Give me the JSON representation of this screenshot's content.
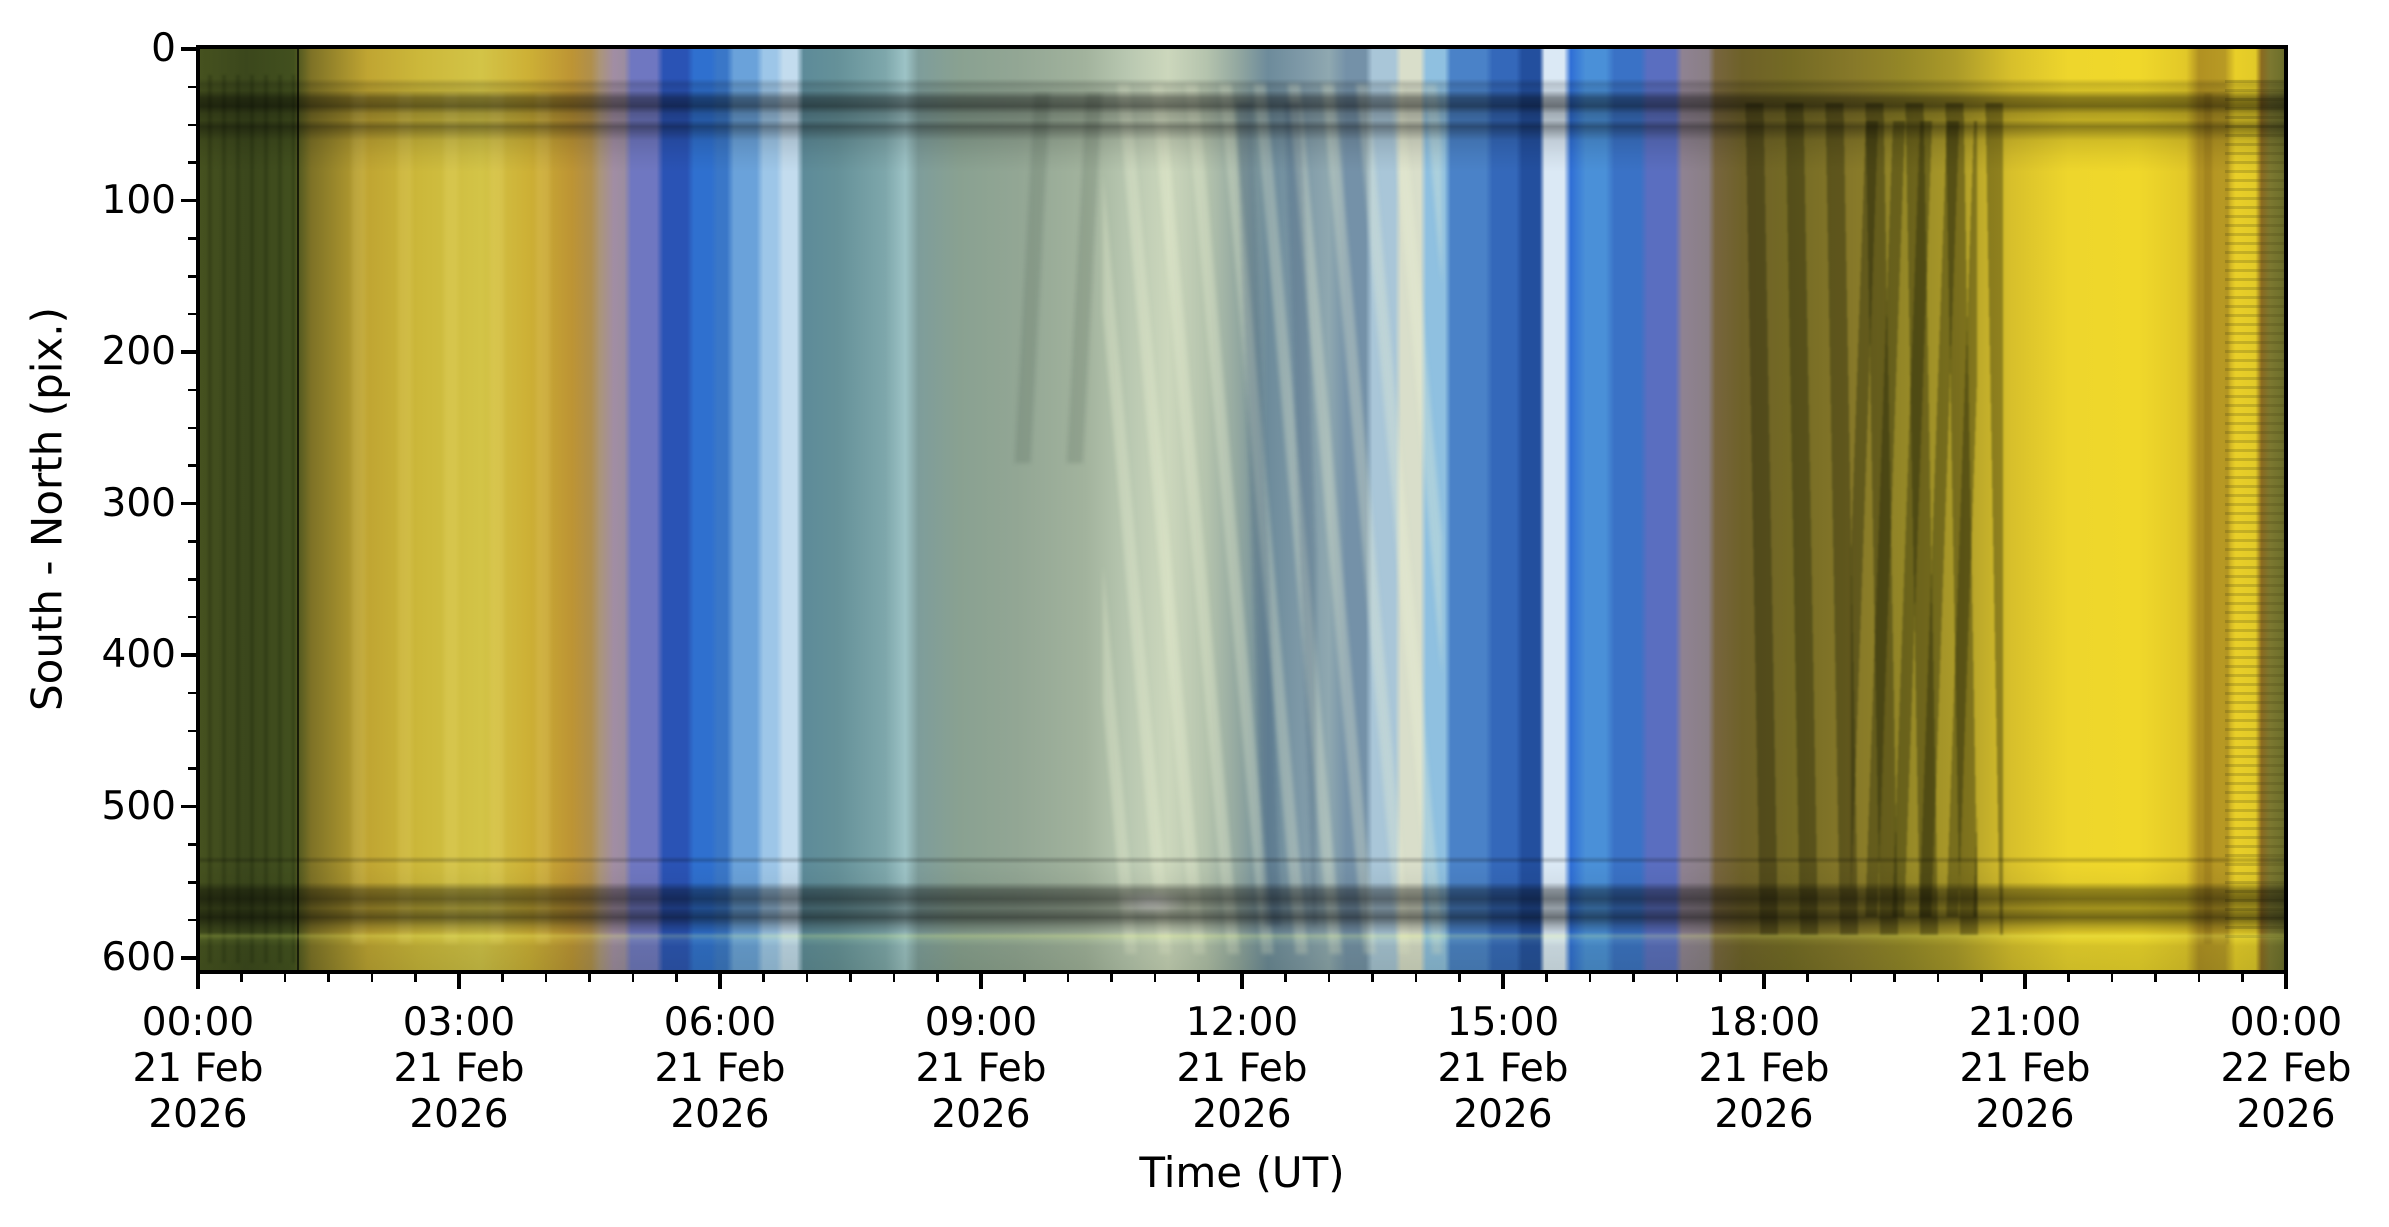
{
  "figure": {
    "background": "#ffffff",
    "text_color": "#000000"
  },
  "chart_data": {
    "type": "heatmap",
    "subtype": "keogram-image",
    "title": "",
    "xlabel": "Time (UT)",
    "ylabel": "South - North (pix.)",
    "x_axis": {
      "start": "00:00 21 Feb 2026",
      "end": "00:00 22 Feb 2026",
      "span_hours": 24,
      "major_tick_interval_hours": 3,
      "minor_tick_interval_hours": 0.5,
      "tick_labels": [
        [
          "00:00",
          "21 Feb",
          "2026"
        ],
        [
          "03:00",
          "21 Feb",
          "2026"
        ],
        [
          "06:00",
          "21 Feb",
          "2026"
        ],
        [
          "09:00",
          "21 Feb",
          "2026"
        ],
        [
          "12:00",
          "21 Feb",
          "2026"
        ],
        [
          "15:00",
          "21 Feb",
          "2026"
        ],
        [
          "18:00",
          "21 Feb",
          "2026"
        ],
        [
          "21:00",
          "21 Feb",
          "2026"
        ],
        [
          "00:00",
          "22 Feb",
          "2026"
        ]
      ]
    },
    "y_axis": {
      "tick_labels": [
        "0",
        "100",
        "200",
        "300",
        "400",
        "500",
        "600"
      ],
      "major_tick_interval": 100,
      "minor_tick_interval": 25,
      "range_pix": [
        0,
        607
      ],
      "direction": "0 at top"
    },
    "keogram_bands": [
      {
        "t": 0.0,
        "c": "#46521f"
      },
      {
        "t": 0.55,
        "c": "#3b471c"
      },
      {
        "t": 1.1,
        "c": "#42501e"
      },
      {
        "t": 1.3,
        "c": "#7e7226"
      },
      {
        "t": 1.95,
        "c": "#c0a532"
      },
      {
        "t": 2.55,
        "c": "#ccb83a"
      },
      {
        "t": 3.25,
        "c": "#d3c447"
      },
      {
        "t": 3.8,
        "c": "#cdb035"
      },
      {
        "t": 4.3,
        "c": "#bd9434"
      },
      {
        "t": 4.52,
        "c": "#b08f4c"
      },
      {
        "t": 4.62,
        "c": "#ab9579"
      },
      {
        "t": 4.78,
        "c": "#a18da4"
      },
      {
        "t": 4.9,
        "c": "#9c8da0"
      },
      {
        "t": 4.98,
        "c": "#6f77c1"
      },
      {
        "t": 5.27,
        "c": "#6f77c1"
      },
      {
        "t": 5.35,
        "c": "#2a53b5"
      },
      {
        "t": 5.62,
        "c": "#2a53b5"
      },
      {
        "t": 5.7,
        "c": "#2f70cf"
      },
      {
        "t": 5.9,
        "c": "#2f70cf"
      },
      {
        "t": 5.97,
        "c": "#3a77c8"
      },
      {
        "t": 6.08,
        "c": "#3a77c8"
      },
      {
        "t": 6.16,
        "c": "#6aa2da"
      },
      {
        "t": 6.42,
        "c": "#6aa2da"
      },
      {
        "t": 6.5,
        "c": "#9dc6e8"
      },
      {
        "t": 6.65,
        "c": "#9dc6e8"
      },
      {
        "t": 6.73,
        "c": "#c3dcee"
      },
      {
        "t": 6.88,
        "c": "#c3dcee"
      },
      {
        "t": 6.96,
        "c": "#5d8b99"
      },
      {
        "t": 7.35,
        "c": "#659199"
      },
      {
        "t": 7.9,
        "c": "#7ea7ab"
      },
      {
        "t": 8.13,
        "c": "#9dc3c6"
      },
      {
        "t": 8.28,
        "c": "#7e9d9b"
      },
      {
        "t": 8.75,
        "c": "#89a191"
      },
      {
        "t": 9.4,
        "c": "#92a694"
      },
      {
        "t": 10.2,
        "c": "#a2b39d"
      },
      {
        "t": 10.7,
        "c": "#b9c8b1"
      },
      {
        "t": 11.15,
        "c": "#ccd7bc"
      },
      {
        "t": 11.6,
        "c": "#b4c3ad"
      },
      {
        "t": 11.95,
        "c": "#93a8a0"
      },
      {
        "t": 12.3,
        "c": "#6d8b9b"
      },
      {
        "t": 12.7,
        "c": "#7f9aa8"
      },
      {
        "t": 13.0,
        "c": "#8fa8b0"
      },
      {
        "t": 13.2,
        "c": "#7491a8"
      },
      {
        "t": 13.42,
        "c": "#7491a8"
      },
      {
        "t": 13.5,
        "c": "#a9c6d8"
      },
      {
        "t": 13.76,
        "c": "#a9c6d8"
      },
      {
        "t": 13.83,
        "c": "#d9deca"
      },
      {
        "t": 14.05,
        "c": "#d9deca"
      },
      {
        "t": 14.12,
        "c": "#8fc0e0"
      },
      {
        "t": 14.33,
        "c": "#8fc0e0"
      },
      {
        "t": 14.4,
        "c": "#4a82c8"
      },
      {
        "t": 14.8,
        "c": "#4a82c8"
      },
      {
        "t": 14.88,
        "c": "#3468ba"
      },
      {
        "t": 15.15,
        "c": "#3468ba"
      },
      {
        "t": 15.22,
        "c": "#234f9e"
      },
      {
        "t": 15.42,
        "c": "#234f9e"
      },
      {
        "t": 15.48,
        "c": "#dbe9f5"
      },
      {
        "t": 15.7,
        "c": "#dbe9f5"
      },
      {
        "t": 15.78,
        "c": "#2f6fd6"
      },
      {
        "t": 15.95,
        "c": "#4a90d8"
      },
      {
        "t": 16.18,
        "c": "#4a90d8"
      },
      {
        "t": 16.28,
        "c": "#3a72c6"
      },
      {
        "t": 16.58,
        "c": "#3a72c6"
      },
      {
        "t": 16.66,
        "c": "#5a6ec0"
      },
      {
        "t": 16.98,
        "c": "#5a6ec0"
      },
      {
        "t": 17.06,
        "c": "#8f8292"
      },
      {
        "t": 17.36,
        "c": "#8a7f86"
      },
      {
        "t": 17.44,
        "c": "#77653e"
      },
      {
        "t": 17.75,
        "c": "#6e6128"
      },
      {
        "t": 18.3,
        "c": "#746a24"
      },
      {
        "t": 19.0,
        "c": "#867829"
      },
      {
        "t": 19.6,
        "c": "#948727"
      },
      {
        "t": 20.2,
        "c": "#ab9a29"
      },
      {
        "t": 20.85,
        "c": "#d8c02b"
      },
      {
        "t": 21.5,
        "c": "#eed62c"
      },
      {
        "t": 22.3,
        "c": "#f0d82a"
      },
      {
        "t": 22.85,
        "c": "#e2c828"
      },
      {
        "t": 23.0,
        "c": "#b19122"
      },
      {
        "t": 23.3,
        "c": "#b89a24"
      },
      {
        "t": 23.42,
        "c": "#e9cf28"
      },
      {
        "t": 23.65,
        "c": "#e2ca28"
      },
      {
        "t": 23.72,
        "c": "#8a6a20"
      },
      {
        "t": 23.82,
        "c": "#7c7830"
      },
      {
        "t": 23.95,
        "c": "#6f702c"
      },
      {
        "t": 24.0,
        "c": "#63652a"
      }
    ],
    "horizontal_rows": [
      {
        "p": 0.0,
        "c": "rgba(0,0,0,0)"
      },
      {
        "p": 0.034,
        "c": "rgba(0,0,0,0)"
      },
      {
        "p": 0.04,
        "c": "rgba(0,0,0,0.17)"
      },
      {
        "p": 0.047,
        "c": "rgba(0,0,0,0.10)"
      },
      {
        "p": 0.055,
        "c": "rgba(0,0,0,0.42)"
      },
      {
        "p": 0.064,
        "c": "rgba(0,0,0,0.52)"
      },
      {
        "p": 0.072,
        "c": "rgba(0,0,0,0.26)"
      },
      {
        "p": 0.079,
        "c": "rgba(0,0,0,0.20)"
      },
      {
        "p": 0.086,
        "c": "rgba(0,0,0,0.42)"
      },
      {
        "p": 0.093,
        "c": "rgba(0,0,0,0.28)"
      },
      {
        "p": 0.101,
        "c": "rgba(0,0,0,0.12)"
      },
      {
        "p": 0.118,
        "c": "rgba(0,0,0,0.05)"
      },
      {
        "p": 0.135,
        "c": "rgba(0,0,0,0)"
      },
      {
        "p": 0.875,
        "c": "rgba(0,0,0,0)"
      },
      {
        "p": 0.879,
        "c": "rgba(0,0,0,0.20)"
      },
      {
        "p": 0.883,
        "c": "rgba(0,0,0,0)"
      },
      {
        "p": 0.903,
        "c": "rgba(0,0,0,0.04)"
      },
      {
        "p": 0.911,
        "c": "rgba(0,0,0,0.38)"
      },
      {
        "p": 0.921,
        "c": "rgba(0,0,0,0.50)"
      },
      {
        "p": 0.931,
        "c": "rgba(0,0,0,0.32)"
      },
      {
        "p": 0.941,
        "c": "rgba(0,0,0,0.52)"
      },
      {
        "p": 0.95,
        "c": "rgba(0,0,0,0.26)"
      },
      {
        "p": 0.957,
        "c": "rgba(0,0,0,0.10)"
      },
      {
        "p": 0.961,
        "c": "rgba(205,225,95,0.22)"
      },
      {
        "p": 0.966,
        "c": "rgba(120,150,60,0.10)"
      },
      {
        "p": 0.972,
        "c": "rgba(30,45,15,0.12)"
      },
      {
        "p": 1.0,
        "c": "rgba(25,40,12,0.16)"
      }
    ],
    "features": [
      {
        "kind": "vline",
        "name": "black-gap-line",
        "t": 1.15,
        "w": 2,
        "c": "rgba(10,12,4,0.8)"
      },
      {
        "kind": "streaks",
        "name": "left-green-striation",
        "t0": 0.0,
        "t1": 1.12,
        "top": 0.03,
        "bottom": 0.99,
        "angle": 90,
        "period": 14,
        "w": 4,
        "c": "rgba(18,28,8,0.22)",
        "blur": 1
      },
      {
        "kind": "streaks",
        "name": "gold-light-striation",
        "t0": 1.4,
        "t1": 4.3,
        "top": 0.05,
        "bottom": 0.97,
        "angle": 90,
        "period": 46,
        "w": 14,
        "c": "rgba(255,242,150,0.14)",
        "blur": 2
      },
      {
        "kind": "streaks",
        "name": "morning-smudge",
        "t0": 9.2,
        "t1": 10.5,
        "top": 0.05,
        "bottom": 0.45,
        "angle": 93,
        "period": 52,
        "w": 16,
        "c": "rgba(55,75,65,0.16)",
        "blur": 2
      },
      {
        "kind": "streaks",
        "name": "cream-cloud-streaks",
        "t0": 10.4,
        "t1": 14.3,
        "top": 0.04,
        "bottom": 0.98,
        "angle": 85,
        "period": 34,
        "w": 12,
        "c": "rgba(238,244,212,0.30)",
        "blur": 2
      },
      {
        "kind": "streaks",
        "name": "dark-blue-streaks",
        "t0": 11.9,
        "t1": 12.85,
        "top": 0.06,
        "bottom": 0.95,
        "angle": 88,
        "period": 48,
        "w": 16,
        "c": "rgba(45,75,110,0.22)",
        "blur": 2
      },
      {
        "kind": "spot",
        "name": "bright-spot",
        "t": 10.95,
        "y": 0.925,
        "w": 74,
        "h": 26,
        "c": "rgba(255,255,252,0.95)"
      },
      {
        "kind": "streaks",
        "name": "evening-dark-curtains",
        "t0": 17.7,
        "t1": 20.75,
        "top": 0.06,
        "bottom": 0.96,
        "angle": 89,
        "period": 40,
        "w": 18,
        "c": "rgba(30,32,8,0.36)",
        "blur": 1
      },
      {
        "kind": "streaks",
        "name": "evening-dark-curtains-2",
        "t0": 19.0,
        "t1": 20.45,
        "top": 0.08,
        "bottom": 0.94,
        "angle": 92,
        "period": 27,
        "w": 12,
        "c": "rgba(24,27,6,0.34)",
        "blur": 1
      },
      {
        "kind": "streaks",
        "name": "late-gold-striation",
        "t0": 22.9,
        "t1": 23.35,
        "top": 0.05,
        "bottom": 0.97,
        "angle": 90,
        "period": 22,
        "w": 8,
        "c": "rgba(120,90,20,0.25)",
        "blur": 1
      },
      {
        "kind": "streaks",
        "name": "right-edge-hstripes",
        "t0": 23.3,
        "t1": 24.0,
        "top": 0.03,
        "bottom": 0.97,
        "angle": 0,
        "period": 9,
        "w": 3,
        "c": "rgba(70,66,18,0.22)",
        "blur": 0
      }
    ]
  }
}
